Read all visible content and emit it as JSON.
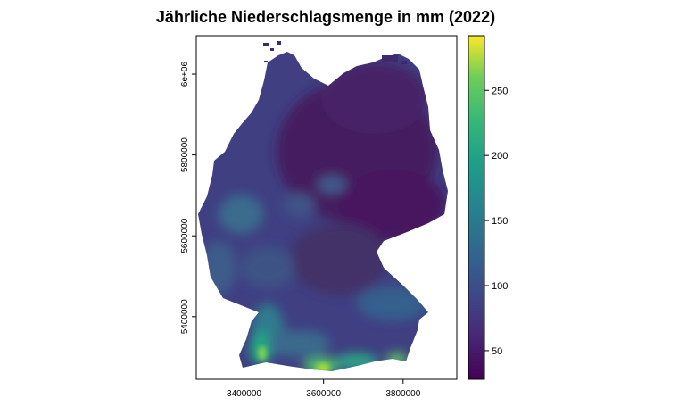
{
  "title": "Jährliche Niederschlagsmenge in mm (2022)",
  "x_axis": {
    "ticks": [
      "3400000",
      "3600000",
      "3800000"
    ],
    "values": [
      3400000,
      3600000,
      3800000
    ]
  },
  "y_axis": {
    "ticks": [
      "5400000",
      "5600000",
      "5800000",
      "6e+06"
    ],
    "values": [
      5400000,
      5600000,
      5800000,
      6000000
    ]
  },
  "legend": {
    "ticks": [
      "50",
      "100",
      "150",
      "200",
      "250"
    ],
    "values": [
      50,
      100,
      150,
      200,
      250
    ],
    "range": [
      28,
      292
    ],
    "palette": "viridis",
    "colors": [
      "#440154",
      "#3b528b",
      "#21908c",
      "#5dc863",
      "#fde725"
    ]
  },
  "chart_data": {
    "type": "heatmap",
    "title": "Jährliche Niederschlagsmenge in mm (2022)",
    "xlim": [
      3280000,
      3935000
    ],
    "ylim": [
      5245000,
      6095000
    ],
    "colorscale": "viridis",
    "zlim": [
      28,
      292
    ]
  }
}
